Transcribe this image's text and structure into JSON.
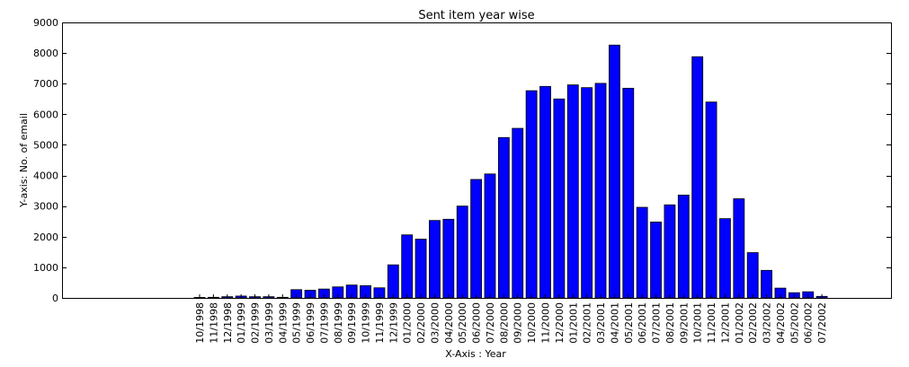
{
  "chart_data": {
    "type": "bar",
    "title": "Sent item year wise",
    "xlabel": "X-Axis : Year",
    "ylabel": "Y-axis: No. of email",
    "ylim": [
      0,
      9000
    ],
    "yticks": [
      0,
      1000,
      2000,
      3000,
      4000,
      5000,
      6000,
      7000,
      8000,
      9000
    ],
    "grid": false,
    "bar_color": "#0000ff",
    "categories": [
      "10/1998",
      "11/1998",
      "12/1998",
      "01/1999",
      "02/1999",
      "03/1999",
      "04/1999",
      "05/1999",
      "06/1999",
      "07/1999",
      "08/1999",
      "09/1999",
      "10/1999",
      "11/1999",
      "12/1999",
      "01/2000",
      "02/2000",
      "03/2000",
      "04/2000",
      "05/2000",
      "06/2000",
      "07/2000",
      "08/2000",
      "09/2000",
      "10/2000",
      "11/2000",
      "12/2000",
      "01/2001",
      "02/2001",
      "03/2001",
      "04/2001",
      "05/2001",
      "06/2001",
      "07/2001",
      "08/2001",
      "09/2001",
      "10/2001",
      "11/2001",
      "12/2001",
      "01/2002",
      "02/2002",
      "03/2002",
      "04/2002",
      "05/2002",
      "06/2002",
      "07/2002"
    ],
    "values": [
      15,
      20,
      40,
      60,
      40,
      40,
      20,
      270,
      250,
      290,
      360,
      420,
      400,
      330,
      1080,
      2060,
      1920,
      2530,
      2570,
      3000,
      3870,
      4050,
      5240,
      5540,
      6770,
      6910,
      6500,
      6960,
      6870,
      7010,
      8260,
      6850,
      2960,
      2480,
      3040,
      3360,
      7880,
      6400,
      2590,
      3240,
      1480,
      900,
      320,
      170,
      200,
      50
    ]
  }
}
